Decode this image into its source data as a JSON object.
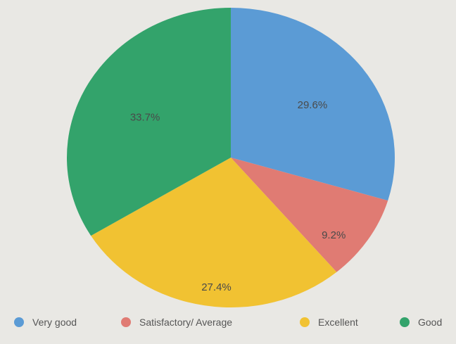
{
  "chart_data": {
    "type": "pie",
    "slices": [
      {
        "label": "Very good",
        "value": 29.6,
        "value_label": "29.6%",
        "color": "#5b9bd5"
      },
      {
        "label": "Satisfactory/ Average",
        "value": 9.2,
        "value_label": "9.2%",
        "color": "#e07b73"
      },
      {
        "label": "Excellent",
        "value": 27.4,
        "value_label": "27.4%",
        "color": "#f1c232"
      },
      {
        "label": "Good",
        "value": 33.7,
        "value_label": "33.7%",
        "color": "#33a36b"
      }
    ],
    "start_angle_deg": 0,
    "direction": "clockwise",
    "legend_position": "bottom"
  }
}
